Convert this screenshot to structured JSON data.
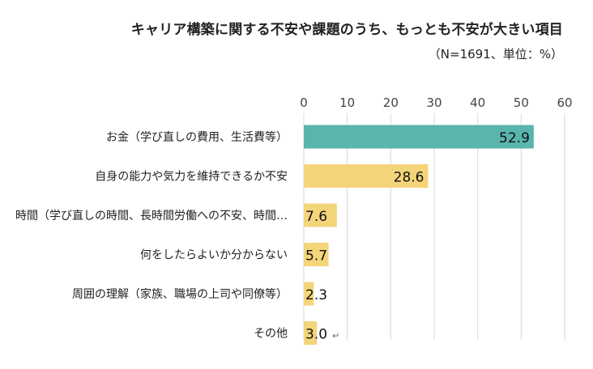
{
  "chart_data": {
    "type": "bar",
    "orientation": "horizontal",
    "title": "キャリア構築に関する不安や課題のうち、もっとも不安が大きい項目",
    "subtitle": "（N=1691、単位：%）",
    "categories": [
      "お金（学び直しの費用、生活費等）",
      "自身の能力や気力を維持できるか不安",
      "時間（学び直しの時間、長時間労働への不安、時間…",
      "何をしたらよいか分からない",
      "周囲の理解（家族、職場の上司や同僚等）",
      "その他"
    ],
    "values": [
      52.9,
      28.6,
      7.6,
      5.7,
      2.3,
      3.0
    ],
    "value_labels": [
      "52.9",
      "28.6",
      "7.6",
      "5.7",
      "2.3",
      "3.0"
    ],
    "x_ticks": [
      "0",
      "10",
      "20",
      "30",
      "40",
      "50",
      "60"
    ],
    "xlim": [
      0,
      60
    ],
    "grid": "vertical",
    "axis_position": "top",
    "legend": "none",
    "colors": {
      "highlight": "#5ab5ad",
      "default": "#f4d57a",
      "grid": "#d9d9d9"
    },
    "highlight_index": 0,
    "trailing_mark": "↵"
  }
}
